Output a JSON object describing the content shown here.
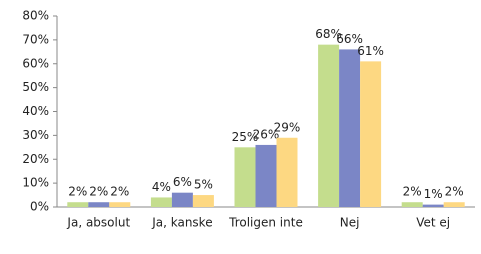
{
  "chart_data": {
    "type": "bar",
    "categories": [
      "Ja, absolut",
      "Ja, kanske",
      "Troligen inte",
      "Nej",
      "Vet ej"
    ],
    "series": [
      {
        "color": "#c4dd8d",
        "values": [
          2,
          4,
          25,
          68,
          2
        ],
        "value_labels": [
          "2%",
          "4%",
          "25%",
          "68%",
          "2%"
        ]
      },
      {
        "color": "#7b86c6",
        "values": [
          2,
          6,
          26,
          66,
          1
        ],
        "value_labels": [
          "2%",
          "6%",
          "26%",
          "66%",
          "1%"
        ]
      },
      {
        "color": "#fdd882",
        "values": [
          2,
          5,
          29,
          61,
          2
        ],
        "value_labels": [
          "2%",
          "5%",
          "29%",
          "61%",
          "2%"
        ]
      }
    ],
    "ylim": [
      0,
      80
    ],
    "yticks": [
      {
        "value": 0,
        "label": "0%"
      },
      {
        "value": 10,
        "label": "10%"
      },
      {
        "value": 20,
        "label": "20%"
      },
      {
        "value": 30,
        "label": "30%"
      },
      {
        "value": 40,
        "label": "40%"
      },
      {
        "value": 50,
        "label": "50%"
      },
      {
        "value": 60,
        "label": "60%"
      },
      {
        "value": 70,
        "label": "70%"
      },
      {
        "value": 80,
        "label": "80%"
      }
    ],
    "grid": false
  }
}
